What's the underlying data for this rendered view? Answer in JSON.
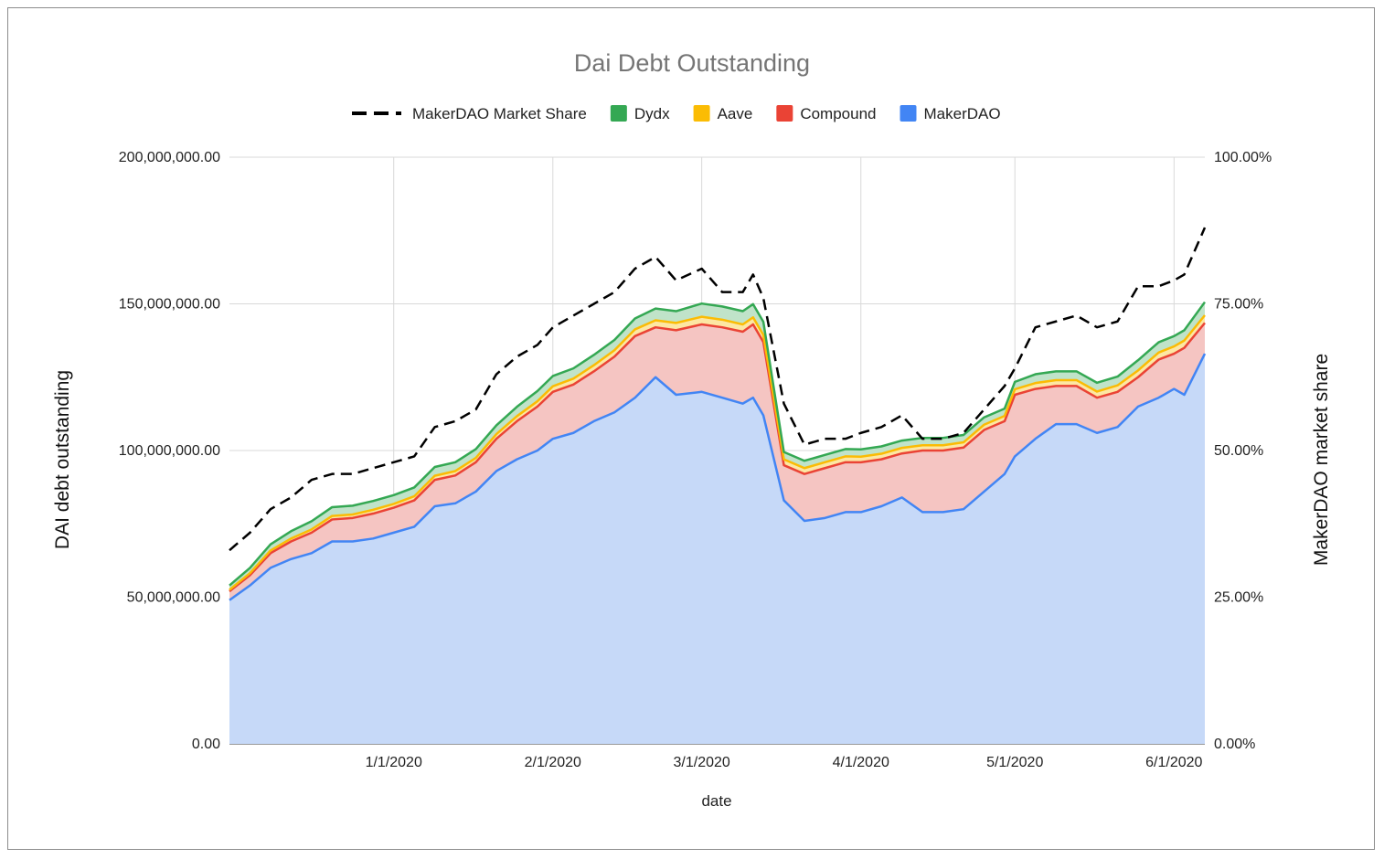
{
  "chart_data": {
    "type": "area",
    "stacked": true,
    "title": "Dai Debt Outstanding",
    "xlabel": "date",
    "ylabel": "DAI debt outstanding",
    "y2label": "MakerDAO market share",
    "xlim": [
      "11/30/2019",
      "6/7/2020"
    ],
    "ylim": [
      0,
      200000000
    ],
    "y2lim": [
      0,
      1
    ],
    "x_ticks": [
      "1/1/2020",
      "2/1/2020",
      "3/1/2020",
      "4/1/2020",
      "5/1/2020",
      "6/1/2020"
    ],
    "y_ticks": [
      "0.00",
      "50,000,000.00",
      "100,000,000.00",
      "150,000,000.00",
      "200,000,000.00"
    ],
    "y2_ticks": [
      "0.00%",
      "25.00%",
      "50.00%",
      "75.00%",
      "100.00%"
    ],
    "grid": true,
    "legend_position": "top",
    "dates": [
      "11/30/2019",
      "12/4/2019",
      "12/8/2019",
      "12/12/2019",
      "12/16/2019",
      "12/20/2019",
      "12/24/2019",
      "12/28/2019",
      "1/1/2020",
      "1/5/2020",
      "1/9/2020",
      "1/13/2020",
      "1/17/2020",
      "1/21/2020",
      "1/25/2020",
      "1/29/2020",
      "2/1/2020",
      "2/5/2020",
      "2/9/2020",
      "2/13/2020",
      "2/17/2020",
      "2/21/2020",
      "2/25/2020",
      "3/1/2020",
      "3/5/2020",
      "3/9/2020",
      "3/11/2020",
      "3/13/2020",
      "3/17/2020",
      "3/21/2020",
      "3/25/2020",
      "3/29/2020",
      "4/1/2020",
      "4/5/2020",
      "4/9/2020",
      "4/13/2020",
      "4/17/2020",
      "4/21/2020",
      "4/25/2020",
      "4/29/2020",
      "5/1/2020",
      "5/5/2020",
      "5/9/2020",
      "5/13/2020",
      "5/17/2020",
      "5/21/2020",
      "5/25/2020",
      "5/29/2020",
      "6/1/2020",
      "6/3/2020",
      "6/7/2020"
    ],
    "series": [
      {
        "name": "MakerDAO",
        "color": "#4285f4",
        "fill": "#c6d9f8",
        "values": [
          49000000,
          54000000,
          60000000,
          63000000,
          65000000,
          69000000,
          69000000,
          70000000,
          72000000,
          74000000,
          81000000,
          82000000,
          86000000,
          93000000,
          97000000,
          100000000,
          104000000,
          106000000,
          110000000,
          113000000,
          118000000,
          125000000,
          119000000,
          120000000,
          118000000,
          116000000,
          118000000,
          112000000,
          83000000,
          76000000,
          77000000,
          79000000,
          79000000,
          81000000,
          84000000,
          79000000,
          79000000,
          80000000,
          86000000,
          92000000,
          98000000,
          104000000,
          109000000,
          109000000,
          106000000,
          108000000,
          115000000,
          118000000,
          121000000,
          119000000,
          133000000
        ]
      },
      {
        "name": "Compound",
        "color": "#ea4335",
        "fill": "#f5c5c2",
        "values": [
          3000000,
          3500000,
          5000000,
          6000000,
          7000000,
          7500000,
          8000000,
          8500000,
          8500000,
          9000000,
          9000000,
          9500000,
          10000000,
          11000000,
          13000000,
          15000000,
          16000000,
          16500000,
          17000000,
          19000000,
          21000000,
          17000000,
          22000000,
          23000000,
          24000000,
          24500000,
          25000000,
          25000000,
          12000000,
          16000000,
          17000000,
          17000000,
          17000000,
          16000000,
          15000000,
          21000000,
          21000000,
          21000000,
          21000000,
          18000000,
          21000000,
          17000000,
          13000000,
          13000000,
          12000000,
          12000000,
          10000000,
          13000000,
          12000000,
          16000000,
          10500000
        ]
      },
      {
        "name": "Aave",
        "color": "#fbbc04",
        "fill": "#fde7a3",
        "values": [
          500000,
          700000,
          900000,
          1000000,
          1100000,
          1200000,
          1200000,
          1300000,
          1300000,
          1400000,
          1400000,
          1500000,
          1500000,
          1600000,
          1700000,
          1800000,
          1900000,
          2000000,
          2100000,
          2200000,
          2300000,
          2400000,
          2500000,
          2600000,
          2600000,
          2500000,
          2400000,
          2400000,
          2000000,
          2000000,
          2000000,
          2000000,
          1900000,
          1900000,
          1900000,
          1800000,
          1800000,
          1800000,
          1800000,
          1800000,
          1900000,
          2000000,
          2000000,
          2000000,
          2100000,
          2200000,
          2300000,
          2400000,
          2500000,
          2500000,
          2600000
        ]
      },
      {
        "name": "Dydx",
        "color": "#34a853",
        "fill": "#c0e3c9",
        "values": [
          1500000,
          1800000,
          2100000,
          2500000,
          2800000,
          3000000,
          3000000,
          3000000,
          3000000,
          3000000,
          3000000,
          3000000,
          3000000,
          3000000,
          3200000,
          3500000,
          3500000,
          3500000,
          3500000,
          3500000,
          3700000,
          4000000,
          4000000,
          4500000,
          4500000,
          4500000,
          4500000,
          4500000,
          2500000,
          2500000,
          2500000,
          2500000,
          2500000,
          2500000,
          2500000,
          2500000,
          2500000,
          2500000,
          2500000,
          2500000,
          2500000,
          3000000,
          3000000,
          3000000,
          3000000,
          3000000,
          3500000,
          3500000,
          3500000,
          3500000,
          4500000
        ]
      },
      {
        "name": "MakerDAO Market Share",
        "axis": "right",
        "color": "#000000",
        "dashed": true,
        "values": [
          0.33,
          0.36,
          0.4,
          0.42,
          0.45,
          0.46,
          0.46,
          0.47,
          0.48,
          0.49,
          0.54,
          0.55,
          0.57,
          0.63,
          0.66,
          0.68,
          0.71,
          0.73,
          0.75,
          0.77,
          0.81,
          0.83,
          0.79,
          0.81,
          0.77,
          0.77,
          0.8,
          0.76,
          0.58,
          0.51,
          0.52,
          0.52,
          0.53,
          0.54,
          0.56,
          0.52,
          0.52,
          0.53,
          0.57,
          0.61,
          0.64,
          0.71,
          0.72,
          0.73,
          0.71,
          0.72,
          0.78,
          0.78,
          0.79,
          0.8,
          0.88
        ]
      }
    ]
  }
}
